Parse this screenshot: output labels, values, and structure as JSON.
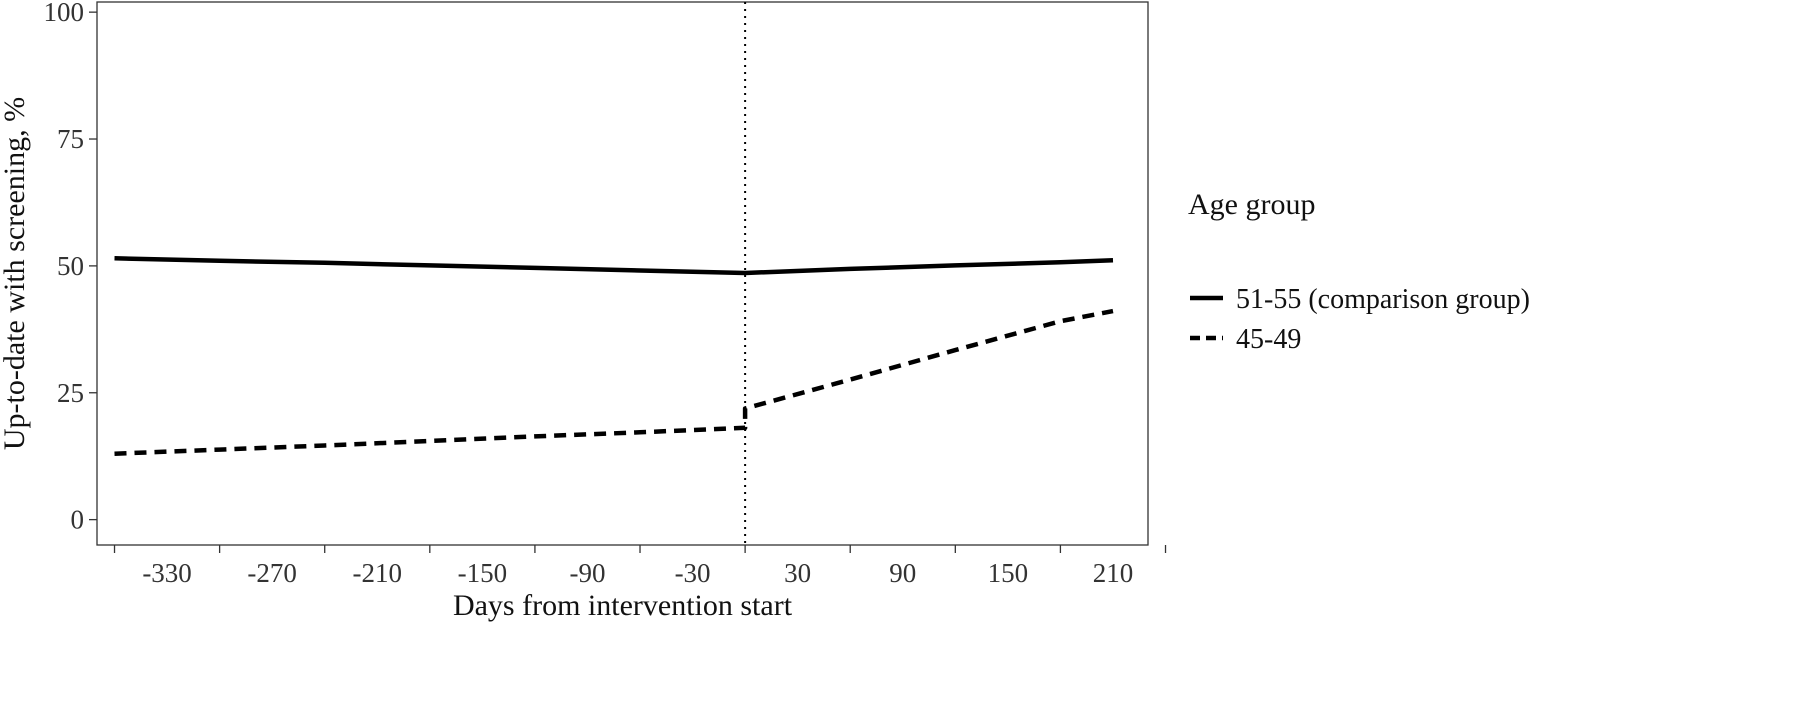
{
  "chart_data": {
    "type": "line",
    "xlabel": "Days from intervention start",
    "ylabel": "Up-to-date with screening, %",
    "xlim": [
      -370,
      230
    ],
    "ylim": [
      -5,
      102
    ],
    "x_ticks": [
      -360,
      -300,
      -240,
      -180,
      -120,
      -60,
      0,
      60,
      120,
      180,
      240
    ],
    "x_tick_labels": [
      "-330",
      "-270",
      "-210",
      "-150",
      "-90",
      "-30",
      "30",
      "90",
      "150",
      "210"
    ],
    "x_tick_label_values": [
      -330,
      -270,
      -210,
      -150,
      -90,
      -30,
      30,
      90,
      150,
      210
    ],
    "y_ticks": [
      0,
      25,
      50,
      75,
      100
    ],
    "y_tick_labels": [
      "0",
      "25",
      "50",
      "75",
      "100"
    ],
    "reference_line": {
      "x": 0,
      "style": "dotted"
    },
    "grid": false,
    "legend": {
      "title": "Age group",
      "position": "right"
    },
    "series": [
      {
        "name": "51-55 (comparison group)",
        "style": "solid",
        "color": "#000000",
        "points": [
          {
            "x": -360,
            "y": 51.5
          },
          {
            "x": -300,
            "y": 51.0
          },
          {
            "x": -240,
            "y": 50.6
          },
          {
            "x": -180,
            "y": 50.1
          },
          {
            "x": -120,
            "y": 49.6
          },
          {
            "x": -60,
            "y": 49.1
          },
          {
            "x": 0,
            "y": 48.6
          },
          {
            "x": 60,
            "y": 49.4
          },
          {
            "x": 120,
            "y": 50.1
          },
          {
            "x": 180,
            "y": 50.7
          },
          {
            "x": 210,
            "y": 51.1
          }
        ]
      },
      {
        "name": "45-49",
        "style": "dashed",
        "color": "#000000",
        "points": [
          {
            "x": -360,
            "y": 13.0
          },
          {
            "x": -300,
            "y": 13.8
          },
          {
            "x": -240,
            "y": 14.6
          },
          {
            "x": -180,
            "y": 15.5
          },
          {
            "x": -120,
            "y": 16.4
          },
          {
            "x": -60,
            "y": 17.2
          },
          {
            "x": 0,
            "y": 18.1
          },
          {
            "x": 0,
            "y": 21.9
          },
          {
            "x": 60,
            "y": 27.6
          },
          {
            "x": 120,
            "y": 33.4
          },
          {
            "x": 180,
            "y": 39.1
          },
          {
            "x": 210,
            "y": 41.1
          }
        ]
      }
    ]
  }
}
